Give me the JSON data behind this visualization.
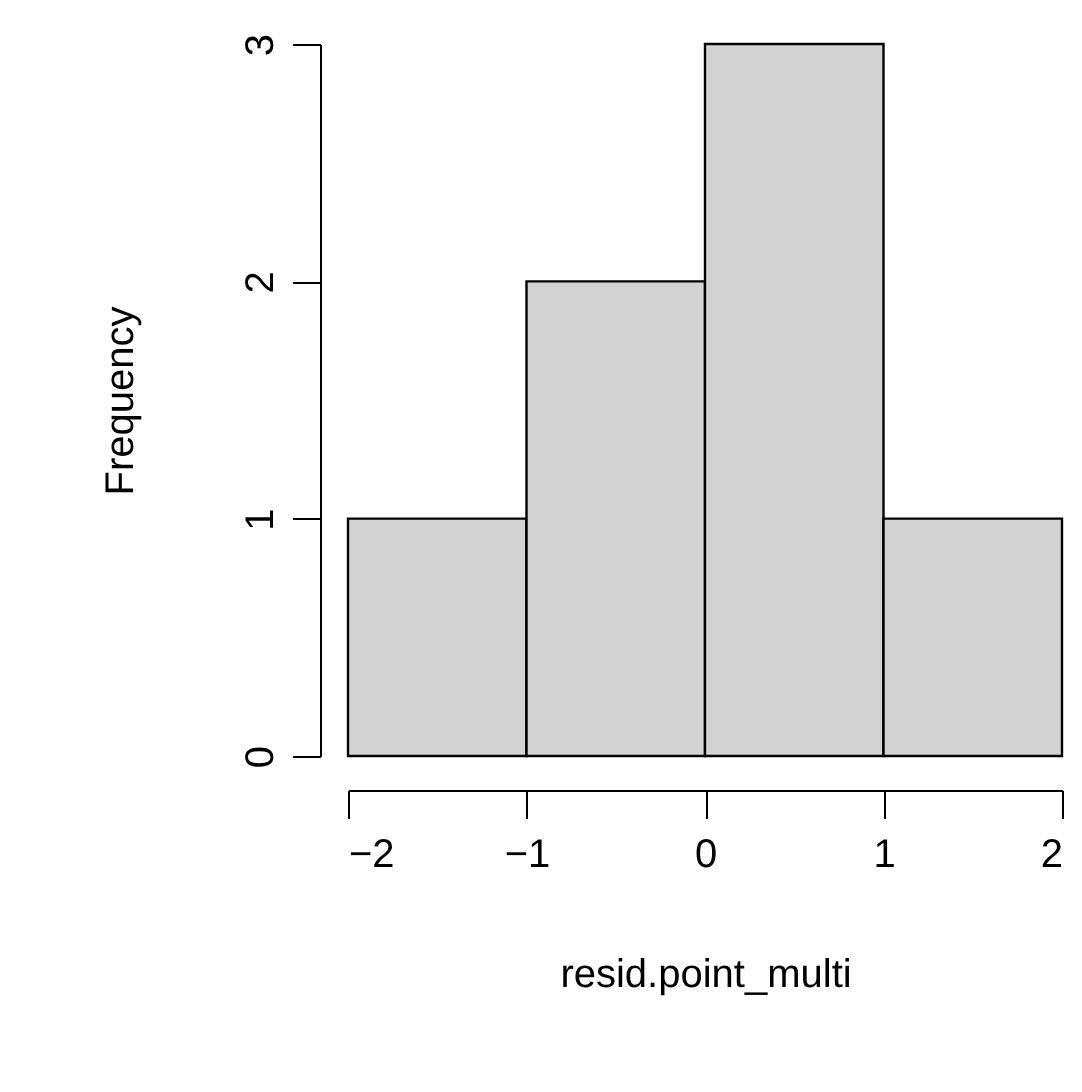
{
  "chart_data": {
    "type": "histogram",
    "xlabel": "resid.point_multi",
    "ylabel": "Frequency",
    "bins": [
      -2,
      -1,
      0,
      1,
      2
    ],
    "values": [
      1,
      2,
      3,
      1
    ],
    "color": "#d3d3d3",
    "xlim": [
      -2,
      2
    ],
    "ylim": [
      0,
      3
    ],
    "xticks": [
      -2,
      -1,
      0,
      1,
      2
    ],
    "yticks": [
      0,
      1,
      2,
      3
    ],
    "grid": false
  }
}
